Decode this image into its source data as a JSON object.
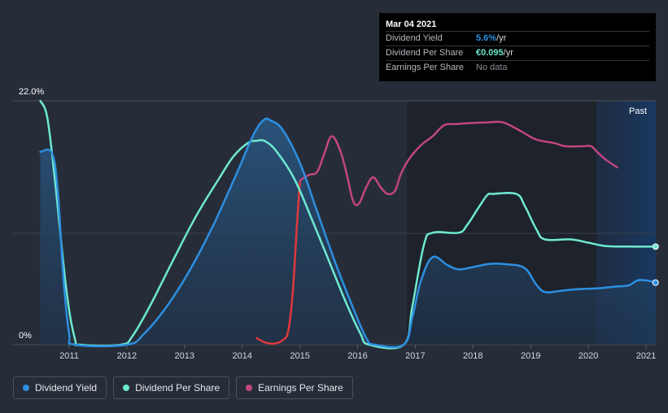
{
  "tooltip": {
    "date": "Mar 04 2021",
    "dividend_yield_label": "Dividend Yield",
    "dividend_yield_value": "5.6%",
    "dividend_yield_unit": " /yr",
    "dps_label": "Dividend Per Share",
    "dps_value": "€0.095",
    "dps_unit": " /yr",
    "eps_label": "Earnings Per Share",
    "eps_value": "No data"
  },
  "legend": {
    "dividend_yield": "Dividend Yield",
    "dividend_per_share": "Dividend Per Share",
    "earnings_per_share": "Earnings Per Share"
  },
  "colors": {
    "dividend_yield": "#2d8fe0",
    "dividend_per_share": "#6ee8d0",
    "earnings_per_share": "#c2467e",
    "eps_negative": "#e0383b",
    "background": "#262d39"
  },
  "chart_data": {
    "type": "line",
    "title": "",
    "y_top_label": "22.0%",
    "y_bottom_label": "0%",
    "past_label": "Past",
    "ylim": [
      0,
      22
    ],
    "xlim": [
      2010.4,
      2021.18
    ],
    "x_ticks": [
      2011,
      2012,
      2013,
      2014,
      2015,
      2016,
      2017,
      2018,
      2019,
      2020,
      2021
    ],
    "x_tick_labels": [
      "2011",
      "2012",
      "2013",
      "2014",
      "2015",
      "2016",
      "2017",
      "2018",
      "2019",
      "2020",
      "2021"
    ],
    "series": [
      {
        "name": "Dividend Yield",
        "unit": "%",
        "points": [
          [
            2010.5,
            17.4
          ],
          [
            2010.7,
            17.3
          ],
          [
            2010.8,
            14
          ],
          [
            2010.9,
            6
          ],
          [
            2011.0,
            1
          ],
          [
            2011.1,
            0
          ],
          [
            2012.0,
            0
          ],
          [
            2012.3,
            1
          ],
          [
            2012.7,
            3.5
          ],
          [
            2013.1,
            6.8
          ],
          [
            2013.5,
            10.8
          ],
          [
            2013.9,
            15.4
          ],
          [
            2014.2,
            19.0
          ],
          [
            2014.38,
            20.3
          ],
          [
            2014.5,
            20.2
          ],
          [
            2014.7,
            19.4
          ],
          [
            2015.0,
            16.4
          ],
          [
            2015.3,
            12.0
          ],
          [
            2015.6,
            7.6
          ],
          [
            2015.9,
            3.6
          ],
          [
            2016.15,
            0.6
          ],
          [
            2016.3,
            0
          ],
          [
            2016.8,
            0
          ],
          [
            2016.95,
            2.5
          ],
          [
            2017.1,
            5.8
          ],
          [
            2017.3,
            7.9
          ],
          [
            2017.55,
            7.2
          ],
          [
            2017.75,
            6.8
          ],
          [
            2018.0,
            7.0
          ],
          [
            2018.3,
            7.3
          ],
          [
            2018.6,
            7.25
          ],
          [
            2018.9,
            6.9
          ],
          [
            2019.1,
            5.4
          ],
          [
            2019.25,
            4.75
          ],
          [
            2019.5,
            4.85
          ],
          [
            2019.8,
            5.0
          ],
          [
            2020.2,
            5.1
          ],
          [
            2020.5,
            5.25
          ],
          [
            2020.7,
            5.35
          ],
          [
            2020.85,
            5.8
          ],
          [
            2021.0,
            5.8
          ],
          [
            2021.18,
            5.6
          ]
        ]
      },
      {
        "name": "Dividend Per Share",
        "unit": "%-scaled",
        "points": [
          [
            2010.5,
            22.0
          ],
          [
            2010.62,
            20.5
          ],
          [
            2010.75,
            15
          ],
          [
            2010.95,
            5
          ],
          [
            2011.1,
            0.5
          ],
          [
            2011.2,
            0
          ],
          [
            2011.9,
            0
          ],
          [
            2012.1,
            0.8
          ],
          [
            2012.4,
            3.5
          ],
          [
            2012.8,
            7.6
          ],
          [
            2013.2,
            11.6
          ],
          [
            2013.6,
            15.0
          ],
          [
            2013.85,
            17.0
          ],
          [
            2014.1,
            18.2
          ],
          [
            2014.25,
            18.4
          ],
          [
            2014.4,
            18.35
          ],
          [
            2014.6,
            17.4
          ],
          [
            2014.9,
            15.0
          ],
          [
            2015.2,
            11.4
          ],
          [
            2015.5,
            7.6
          ],
          [
            2015.8,
            3.8
          ],
          [
            2016.05,
            1.0
          ],
          [
            2016.2,
            0
          ],
          [
            2016.8,
            0
          ],
          [
            2016.95,
            3.5
          ],
          [
            2017.15,
            9.0
          ],
          [
            2017.3,
            10.1
          ],
          [
            2017.75,
            10.1
          ],
          [
            2017.9,
            10.8
          ],
          [
            2018.1,
            12.4
          ],
          [
            2018.25,
            13.5
          ],
          [
            2018.35,
            13.6
          ],
          [
            2018.75,
            13.6
          ],
          [
            2018.9,
            12.5
          ],
          [
            2019.1,
            10.4
          ],
          [
            2019.25,
            9.5
          ],
          [
            2019.7,
            9.5
          ],
          [
            2020.0,
            9.2
          ],
          [
            2020.3,
            8.9
          ],
          [
            2020.7,
            8.85
          ],
          [
            2021.18,
            8.85
          ]
        ]
      },
      {
        "name": "Earnings Per Share",
        "unit": "scaled",
        "points": [
          [
            2015.0,
            14.8
          ],
          [
            2015.15,
            15.3
          ],
          [
            2015.3,
            15.6
          ],
          [
            2015.42,
            17.2
          ],
          [
            2015.55,
            18.8
          ],
          [
            2015.7,
            17.5
          ],
          [
            2015.82,
            15.2
          ],
          [
            2015.92,
            13.0
          ],
          [
            2016.02,
            12.7
          ],
          [
            2016.15,
            14.2
          ],
          [
            2016.27,
            15.1
          ],
          [
            2016.4,
            14.2
          ],
          [
            2016.52,
            13.6
          ],
          [
            2016.65,
            13.9
          ],
          [
            2016.75,
            15.4
          ],
          [
            2016.9,
            16.8
          ],
          [
            2017.1,
            18.0
          ],
          [
            2017.3,
            18.8
          ],
          [
            2017.5,
            19.8
          ],
          [
            2017.7,
            19.9
          ],
          [
            2018.0,
            20.0
          ],
          [
            2018.25,
            20.05
          ],
          [
            2018.45,
            20.1
          ],
          [
            2018.6,
            19.9
          ],
          [
            2018.85,
            19.2
          ],
          [
            2019.1,
            18.5
          ],
          [
            2019.4,
            18.2
          ],
          [
            2019.6,
            17.9
          ],
          [
            2019.9,
            17.9
          ],
          [
            2020.05,
            17.9
          ],
          [
            2020.15,
            17.4
          ],
          [
            2020.3,
            16.7
          ],
          [
            2020.5,
            16.0
          ]
        ],
        "negative_segment": [
          [
            2014.25,
            0.6
          ],
          [
            2014.4,
            0.2
          ],
          [
            2014.55,
            0.1
          ],
          [
            2014.7,
            0.4
          ],
          [
            2014.8,
            1.3
          ],
          [
            2014.88,
            5.0
          ],
          [
            2014.95,
            11.0
          ],
          [
            2015.0,
            14.8
          ]
        ]
      }
    ]
  }
}
